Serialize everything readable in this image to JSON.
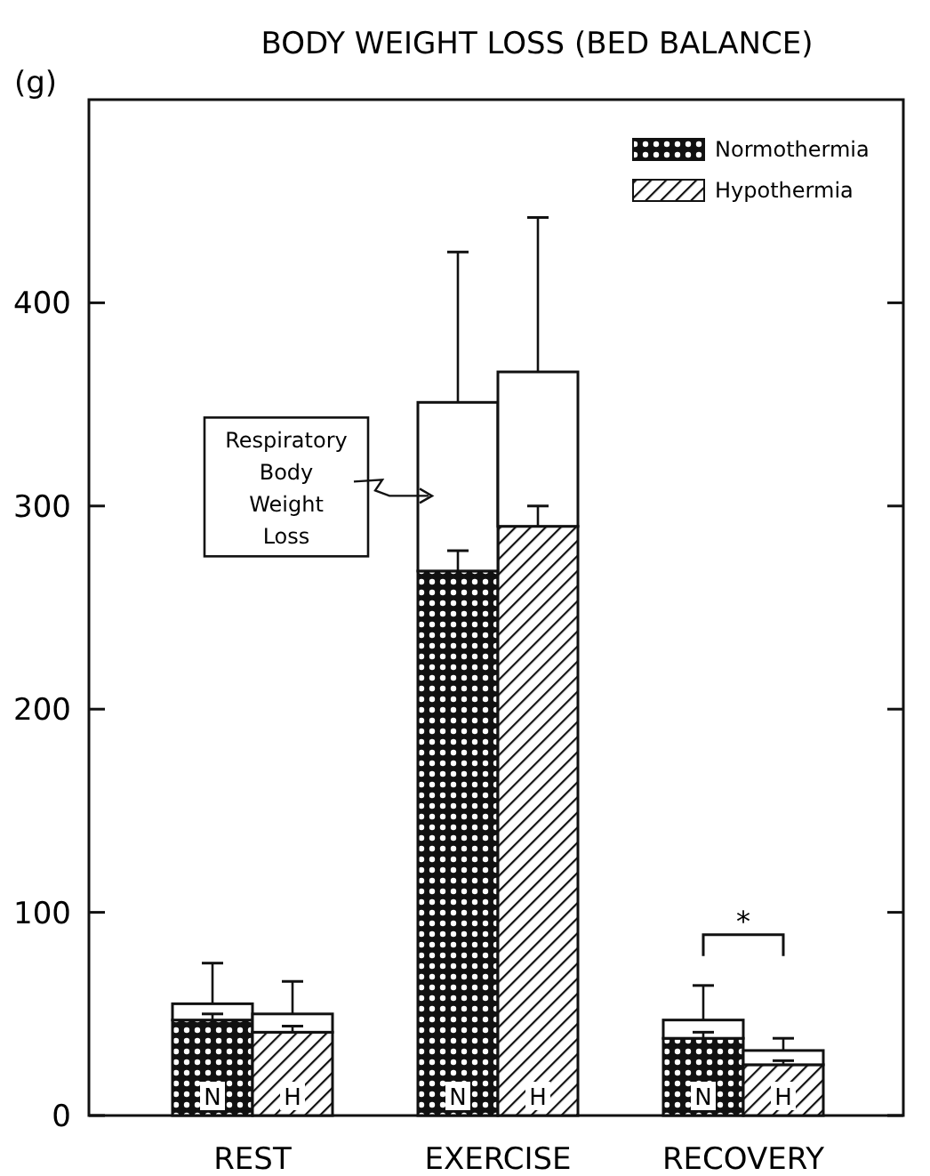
{
  "chart_data": {
    "type": "bar",
    "title": "BODY  WEIGHT  LOSS  (BED BALANCE)",
    "ylabel": "(g)",
    "categories": [
      "N",
      "H",
      "N",
      "H",
      "N",
      "H"
    ],
    "stacked": true,
    "series": [
      {
        "name": "Normothermia",
        "color": "#111111",
        "values": [
          47,
          null,
          268,
          null,
          38,
          null
        ],
        "errors": [
          [
            47,
            50
          ],
          null,
          [
            268,
            278
          ],
          null,
          [
            38,
            41
          ],
          null
        ]
      },
      {
        "name": "Hypothermia",
        "color": "#111111",
        "values": [
          null,
          41,
          null,
          290,
          null,
          25
        ],
        "errors": [
          null,
          [
            41,
            44
          ],
          null,
          [
            290,
            300
          ],
          null,
          [
            25,
            27
          ]
        ]
      },
      {
        "color": "#ffffff",
        "values": [
          8,
          9,
          83,
          76,
          9,
          7
        ],
        "errors": [
          [
            55,
            75
          ],
          [
            50,
            66
          ],
          [
            351,
            425
          ],
          [
            366,
            442
          ],
          [
            47,
            64
          ],
          [
            32,
            38
          ]
        ]
      }
    ],
    "ylim": [
      0,
      500
    ],
    "yticks": [
      0,
      100,
      200,
      300,
      400
    ],
    "legend": "top right",
    "annotations": [
      "REST",
      "EXERCISE",
      "RECOVERY",
      "Respiratory\nBody\nWeight\nLoss",
      "*"
    ]
  }
}
